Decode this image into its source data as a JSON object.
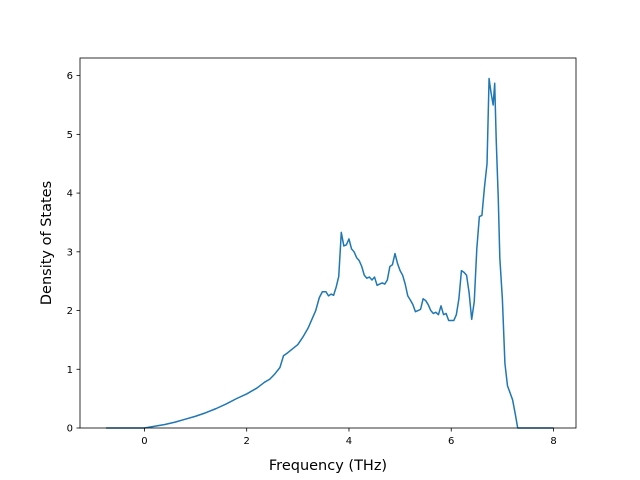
{
  "chart_data": {
    "type": "line",
    "title": "",
    "xlabel": "Frequency (THz)",
    "ylabel": "Density of States",
    "xlim": [
      -1.26,
      8.44
    ],
    "ylim": [
      0,
      6.3
    ],
    "xticks": [
      0,
      2,
      4,
      6,
      8
    ],
    "yticks": [
      0,
      1,
      2,
      3,
      4,
      5,
      6
    ],
    "grid": false,
    "line_color": "#1f77b4",
    "series": [
      {
        "x": [
          -0.75,
          -0.5,
          -0.25,
          0.0,
          0.2,
          0.4,
          0.6,
          0.8,
          1.0,
          1.2,
          1.4,
          1.6,
          1.8,
          2.0,
          2.2,
          2.35,
          2.45,
          2.55,
          2.65,
          2.72,
          2.8,
          2.9,
          3.0,
          3.1,
          3.2,
          3.3,
          3.35,
          3.42,
          3.48,
          3.55,
          3.6,
          3.65,
          3.7,
          3.75,
          3.8,
          3.85,
          3.9,
          3.95,
          4.0,
          4.05,
          4.1,
          4.15,
          4.2,
          4.25,
          4.3,
          4.35,
          4.4,
          4.45,
          4.5,
          4.55,
          4.6,
          4.65,
          4.7,
          4.75,
          4.8,
          4.85,
          4.9,
          4.95,
          5.0,
          5.05,
          5.1,
          5.15,
          5.2,
          5.25,
          5.3,
          5.35,
          5.4,
          5.45,
          5.5,
          5.55,
          5.6,
          5.65,
          5.7,
          5.75,
          5.8,
          5.85,
          5.9,
          5.95,
          6.0,
          6.05,
          6.1,
          6.15,
          6.2,
          6.25,
          6.3,
          6.35,
          6.4,
          6.45,
          6.5,
          6.55,
          6.6,
          6.65,
          6.7,
          6.74,
          6.78,
          6.82,
          6.85,
          6.88,
          6.92,
          6.95,
          7.0,
          7.05,
          7.1,
          7.15,
          7.2,
          7.25,
          7.3,
          7.4,
          7.6,
          7.8,
          8.0
        ],
        "y": [
          0,
          0,
          0,
          0,
          0.03,
          0.06,
          0.1,
          0.15,
          0.2,
          0.26,
          0.33,
          0.41,
          0.5,
          0.58,
          0.68,
          0.78,
          0.83,
          0.92,
          1.03,
          1.23,
          1.28,
          1.35,
          1.42,
          1.55,
          1.7,
          1.9,
          2.0,
          2.22,
          2.32,
          2.32,
          2.25,
          2.28,
          2.26,
          2.4,
          2.58,
          3.33,
          3.1,
          3.12,
          3.22,
          3.05,
          3.0,
          2.9,
          2.85,
          2.75,
          2.6,
          2.55,
          2.57,
          2.52,
          2.57,
          2.43,
          2.45,
          2.47,
          2.45,
          2.52,
          2.75,
          2.78,
          2.97,
          2.8,
          2.68,
          2.6,
          2.45,
          2.25,
          2.18,
          2.1,
          1.98,
          2.0,
          2.02,
          2.2,
          2.17,
          2.1,
          2.0,
          1.95,
          1.97,
          1.93,
          2.08,
          1.93,
          1.95,
          1.83,
          1.83,
          1.83,
          1.93,
          2.2,
          2.68,
          2.65,
          2.6,
          2.3,
          1.85,
          2.15,
          3.05,
          3.6,
          3.62,
          4.1,
          4.5,
          5.95,
          5.7,
          5.5,
          5.87,
          4.9,
          3.9,
          2.9,
          2.2,
          1.1,
          0.72,
          0.6,
          0.48,
          0.25,
          0.0,
          0.0,
          0.0,
          0.0,
          0.0
        ]
      }
    ]
  }
}
